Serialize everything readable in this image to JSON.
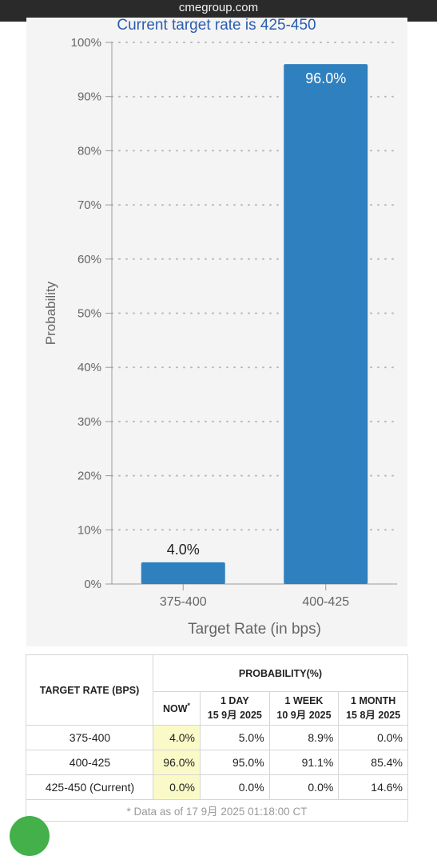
{
  "browser": {
    "url_title": "cmegroup.com"
  },
  "colors": {
    "bar": "#2f80bf",
    "grid": "#b9b9b9",
    "axis": "#9a9a9a",
    "title": "#2a5db0",
    "now_highlight": "#fafac8"
  },
  "chart_data": {
    "type": "bar",
    "title": "Current target rate is 425-450",
    "xlabel": "Target Rate (in bps)",
    "ylabel": "Probability",
    "categories": [
      "375-400",
      "400-425"
    ],
    "values": [
      4.0,
      96.0
    ],
    "data_labels": [
      "4.0%",
      "96.0%"
    ],
    "ylim": [
      0,
      100
    ],
    "yticks": [
      "0%",
      "10%",
      "20%",
      "30%",
      "40%",
      "50%",
      "60%",
      "70%",
      "80%",
      "90%",
      "100%"
    ],
    "grid": true
  },
  "table": {
    "col_target_header": "TARGET RATE (BPS)",
    "probability_header": "PROBABILITY(%)",
    "now_label": "NOW",
    "now_marker": "*",
    "periods": [
      {
        "label": "1 DAY",
        "date": "15 9月 2025"
      },
      {
        "label": "1 WEEK",
        "date": "10 9月 2025"
      },
      {
        "label": "1 MONTH",
        "date": "15 8月 2025"
      }
    ],
    "rows": [
      {
        "rate": "375-400",
        "now": "4.0%",
        "d1": "5.0%",
        "w1": "8.9%",
        "m1": "0.0%"
      },
      {
        "rate": "400-425",
        "now": "96.0%",
        "d1": "95.0%",
        "w1": "91.1%",
        "m1": "85.4%"
      },
      {
        "rate": "425-450 (Current)",
        "now": "0.0%",
        "d1": "0.0%",
        "w1": "0.0%",
        "m1": "14.6%"
      }
    ],
    "footnote": "* Data as of 17 9月 2025 01:18:00 CT"
  }
}
